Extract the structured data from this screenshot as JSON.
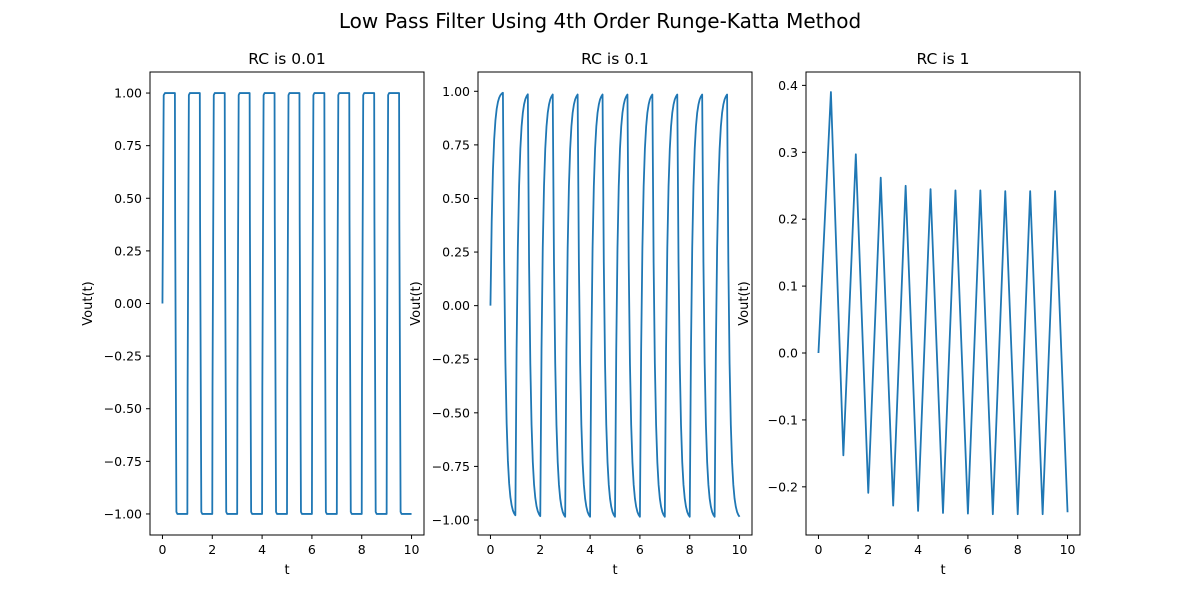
{
  "figure": {
    "title": "Low Pass Filter Using 4th Order Runge-Katta Method",
    "line_color": "#1f77b4"
  },
  "chart_data": [
    {
      "type": "line",
      "title": "RC is 0.01",
      "xlabel": "t",
      "ylabel": "Vout(t)",
      "xlim": [
        -0.5,
        10.5
      ],
      "ylim": [
        -1.1,
        1.1
      ],
      "xticks": [
        0,
        2,
        4,
        6,
        8,
        10
      ],
      "yticks": [
        -1.0,
        -0.75,
        -0.5,
        -0.25,
        0.0,
        0.25,
        0.5,
        0.75,
        1.0
      ],
      "ytick_labels": [
        "−1.00",
        "−0.75",
        "−0.50",
        "−0.25",
        "0.00",
        "0.25",
        "0.50",
        "0.75",
        "1.00"
      ],
      "series": [
        {
          "x": [
            0,
            0.05,
            0.1,
            0.5,
            0.51,
            0.56,
            0.6,
            1.0,
            1.01,
            1.06,
            1.1,
            1.5,
            1.51,
            1.56,
            1.6,
            2.0,
            2.01,
            2.06,
            2.1,
            2.5,
            2.51,
            2.56,
            2.6,
            3.0,
            3.01,
            3.06,
            3.1,
            3.5,
            3.51,
            3.56,
            3.6,
            4.0,
            4.01,
            4.06,
            4.1,
            4.5,
            4.51,
            4.56,
            4.6,
            5.0,
            5.01,
            5.06,
            5.1,
            5.5,
            5.51,
            5.56,
            5.6,
            6.0,
            6.01,
            6.06,
            6.1,
            6.5,
            6.51,
            6.56,
            6.6,
            7.0,
            7.01,
            7.06,
            7.1,
            7.5,
            7.51,
            7.56,
            7.6,
            8.0,
            8.01,
            8.06,
            8.1,
            8.5,
            8.51,
            8.56,
            8.6,
            9.0,
            9.01,
            9.06,
            9.1,
            9.5,
            9.51,
            9.56,
            9.6,
            10.0
          ],
          "y": [
            0,
            0.99,
            1.0,
            1.0,
            0.4,
            -0.99,
            -1.0,
            -1.0,
            -0.4,
            0.99,
            1.0,
            1.0,
            0.4,
            -0.99,
            -1.0,
            -1.0,
            -0.4,
            0.99,
            1.0,
            1.0,
            0.4,
            -0.99,
            -1.0,
            -1.0,
            -0.4,
            0.99,
            1.0,
            1.0,
            0.4,
            -0.99,
            -1.0,
            -1.0,
            -0.4,
            0.99,
            1.0,
            1.0,
            0.4,
            -0.99,
            -1.0,
            -1.0,
            -0.4,
            0.99,
            1.0,
            1.0,
            0.4,
            -0.99,
            -1.0,
            -1.0,
            -0.4,
            0.99,
            1.0,
            1.0,
            0.4,
            -0.99,
            -1.0,
            -1.0,
            -0.4,
            0.99,
            1.0,
            1.0,
            0.4,
            -0.99,
            -1.0,
            -1.0,
            -0.4,
            0.99,
            1.0,
            1.0,
            0.4,
            -0.99,
            -1.0,
            -1.0,
            -0.4,
            0.99,
            1.0,
            1.0,
            0.4,
            -0.99,
            -1.0,
            -1.0
          ]
        }
      ]
    },
    {
      "type": "line",
      "title": "RC is 0.1",
      "xlabel": "t",
      "ylabel": "Vout(t)",
      "xlim": [
        -0.5,
        10.5
      ],
      "ylim": [
        -1.07,
        1.09
      ],
      "xticks": [
        0,
        2,
        4,
        6,
        8,
        10
      ],
      "yticks": [
        -1.0,
        -0.75,
        -0.5,
        -0.25,
        0.0,
        0.25,
        0.5,
        0.75,
        1.0
      ],
      "ytick_labels": [
        "−1.00",
        "−0.75",
        "−0.50",
        "−0.25",
        "0.00",
        "0.25",
        "0.50",
        "0.75",
        "1.00"
      ],
      "series": [
        {
          "x": [
            0,
            0.05,
            0.1,
            0.15,
            0.2,
            0.25,
            0.3,
            0.35,
            0.4,
            0.45,
            0.5,
            0.55,
            0.6,
            0.65,
            0.7,
            0.75,
            0.8,
            0.85,
            0.9,
            0.95,
            1.0,
            1.05,
            1.1,
            1.15,
            1.2,
            1.25,
            1.3,
            1.35,
            1.4,
            1.45,
            1.5,
            1.55,
            1.6,
            1.65,
            1.7,
            1.75,
            1.8,
            1.85,
            1.9,
            1.95,
            2.0,
            2.05,
            2.1,
            2.15,
            2.2,
            2.25,
            2.3,
            2.35,
            2.4,
            2.45,
            2.5,
            2.55,
            2.6,
            2.65,
            2.7,
            2.75,
            2.8,
            2.85,
            2.9,
            2.95,
            3.0,
            3.05,
            3.1,
            3.15,
            3.2,
            3.25,
            3.3,
            3.35,
            3.4,
            3.45,
            3.5,
            3.55,
            3.6,
            3.65,
            3.7,
            3.75,
            3.8,
            3.85,
            3.9,
            3.95,
            4.0,
            4.05,
            4.1,
            4.15,
            4.2,
            4.25,
            4.3,
            4.35,
            4.4,
            4.45,
            4.5,
            4.55,
            4.6,
            4.65,
            4.7,
            4.75,
            4.8,
            4.85,
            4.9,
            4.95,
            5.0,
            5.05,
            5.1,
            5.15,
            5.2,
            5.25,
            5.3,
            5.35,
            5.4,
            5.45,
            5.5,
            5.55,
            5.6,
            5.65,
            5.7,
            5.75,
            5.8,
            5.85,
            5.9,
            5.95,
            6.0,
            6.05,
            6.1,
            6.15,
            6.2,
            6.25,
            6.3,
            6.35,
            6.4,
            6.45,
            6.5,
            6.55,
            6.6,
            6.65,
            6.7,
            6.75,
            6.8,
            6.85,
            6.9,
            6.95,
            7.0,
            7.05,
            7.1,
            7.15,
            7.2,
            7.25,
            7.3,
            7.35,
            7.4,
            7.45,
            7.5,
            7.55,
            7.6,
            7.65,
            7.7,
            7.75,
            7.8,
            7.85,
            7.9,
            7.95,
            8.0,
            8.05,
            8.1,
            8.15,
            8.2,
            8.25,
            8.3,
            8.35,
            8.4,
            8.45,
            8.5,
            8.55,
            8.6,
            8.65,
            8.7,
            8.75,
            8.8,
            8.85,
            8.9,
            8.95,
            9.0,
            9.05,
            9.1,
            9.15,
            9.2,
            9.25,
            9.3,
            9.35,
            9.4,
            9.45,
            9.5,
            9.55,
            9.6,
            9.65,
            9.7,
            9.75,
            9.8,
            9.85,
            9.9,
            9.95,
            10.0
          ],
          "y": [
            0.0,
            0.393,
            0.632,
            0.777,
            0.865,
            0.918,
            0.95,
            0.97,
            0.982,
            0.989,
            0.993,
            0.211,
            -0.263,
            -0.55,
            -0.724,
            -0.829,
            -0.893,
            -0.931,
            -0.955,
            -0.969,
            -0.978,
            -0.199,
            0.273,
            0.559,
            0.732,
            0.837,
            0.9,
            0.939,
            0.963,
            0.977,
            0.986,
            0.205,
            -0.268,
            -0.555,
            -0.729,
            -0.834,
            -0.897,
            -0.936,
            -0.959,
            -0.973,
            -0.982,
            -0.202,
            0.271,
            0.557,
            0.731,
            0.836,
            0.9,
            0.938,
            0.962,
            0.976,
            0.985,
            0.204,
            -0.269,
            -0.556,
            -0.73,
            -0.836,
            -0.9,
            -0.938,
            -0.962,
            -0.976,
            -0.985,
            -0.203,
            0.27,
            0.557,
            0.731,
            0.836,
            0.9,
            0.938,
            0.962,
            0.976,
            0.985,
            0.203,
            -0.27,
            -0.557,
            -0.731,
            -0.836,
            -0.9,
            -0.938,
            -0.962,
            -0.976,
            -0.985,
            -0.203,
            0.27,
            0.557,
            0.731,
            0.836,
            0.9,
            0.938,
            0.962,
            0.976,
            0.985,
            0.203,
            -0.27,
            -0.557,
            -0.731,
            -0.836,
            -0.9,
            -0.938,
            -0.962,
            -0.976,
            -0.985,
            -0.203,
            0.27,
            0.557,
            0.731,
            0.836,
            0.9,
            0.938,
            0.962,
            0.976,
            0.985,
            0.203,
            -0.27,
            -0.557,
            -0.731,
            -0.836,
            -0.9,
            -0.938,
            -0.962,
            -0.976,
            -0.985,
            -0.203,
            0.27,
            0.557,
            0.731,
            0.836,
            0.9,
            0.938,
            0.962,
            0.976,
            0.985,
            0.203,
            -0.27,
            -0.557,
            -0.731,
            -0.836,
            -0.9,
            -0.938,
            -0.962,
            -0.976,
            -0.985,
            -0.203,
            0.27,
            0.557,
            0.731,
            0.836,
            0.9,
            0.938,
            0.962,
            0.976,
            0.985,
            0.203,
            -0.27,
            -0.557,
            -0.731,
            -0.836,
            -0.9,
            -0.938,
            -0.962,
            -0.976,
            -0.985,
            -0.203,
            0.27,
            0.557,
            0.731,
            0.836,
            0.9,
            0.938,
            0.962,
            0.976,
            0.985,
            0.203,
            -0.27,
            -0.557,
            -0.731,
            -0.836,
            -0.9,
            -0.938,
            -0.962,
            -0.976,
            -0.985,
            -0.203,
            0.27,
            0.557,
            0.731,
            0.836,
            0.9,
            0.938,
            0.962,
            0.976,
            0.985,
            0.203,
            -0.27,
            -0.557,
            -0.731,
            -0.836,
            -0.9,
            -0.938,
            -0.962,
            -0.976,
            -0.985
          ]
        }
      ]
    },
    {
      "type": "line",
      "title": "RC is 1",
      "xlabel": "t",
      "ylabel": "Vout(t)",
      "xlim": [
        -0.5,
        10.5
      ],
      "ylim": [
        -0.272,
        0.42
      ],
      "xticks": [
        0,
        2,
        4,
        6,
        8,
        10
      ],
      "yticks": [
        -0.2,
        -0.1,
        0.0,
        0.1,
        0.2,
        0.3,
        0.4
      ],
      "ytick_labels": [
        "−0.2",
        "−0.1",
        "0.0",
        "0.1",
        "0.2",
        "0.3",
        "0.4"
      ],
      "series": [
        {
          "x": [
            0,
            0.5,
            1.0,
            1.5,
            2.0,
            2.5,
            3.0,
            3.5,
            4.0,
            4.5,
            5.0,
            5.5,
            6.0,
            6.5,
            7.0,
            7.5,
            8.0,
            8.5,
            9.0,
            9.5,
            10.0
          ],
          "y": [
            0.0,
            0.39,
            -0.153,
            0.297,
            -0.209,
            0.262,
            -0.228,
            0.25,
            -0.236,
            0.245,
            -0.239,
            0.243,
            -0.24,
            0.243,
            -0.241,
            0.242,
            -0.241,
            0.242,
            -0.241,
            0.242,
            -0.238
          ]
        }
      ]
    }
  ]
}
